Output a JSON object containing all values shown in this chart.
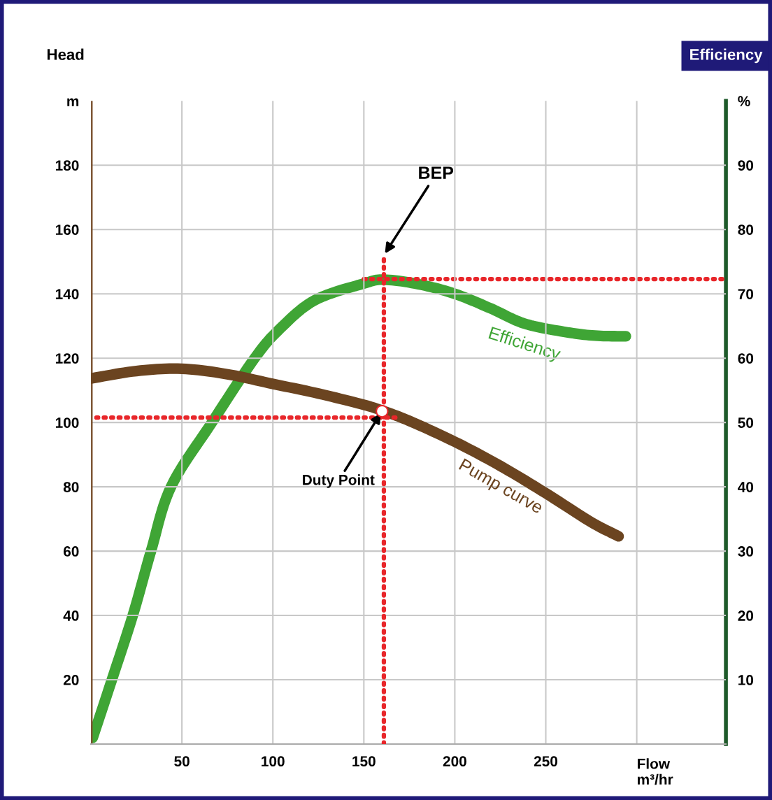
{
  "chart_data": {
    "type": "line",
    "ylabel": "Head",
    "y2label": "Efficiency",
    "xlabel": "Flow\nm³/hr",
    "xlim": [
      0,
      349
    ],
    "xticks": [
      50,
      100,
      150,
      200,
      250,
      {
        "value": 300,
        "label": null
      }
    ],
    "ylim": [
      0,
      200
    ],
    "yticks": [
      20,
      40,
      60,
      80,
      100,
      120,
      140,
      160,
      180,
      {
        "value": 200,
        "label": "m"
      }
    ],
    "y2lim": [
      0,
      100
    ],
    "y2ticks": [
      10,
      20,
      30,
      40,
      50,
      60,
      70,
      80,
      90,
      {
        "value": 100,
        "label": "%"
      }
    ],
    "grid": true,
    "legend": false,
    "series": [
      {
        "name": "Pump curve",
        "color": "#6b4420",
        "x": [
          0,
          25,
          50,
          75,
          100,
          125,
          150,
          161,
          175,
          200,
          225,
          250,
          275,
          290
        ],
        "values": [
          113.7,
          116,
          116.7,
          115,
          112,
          109,
          105.5,
          103.5,
          100.5,
          94,
          86.5,
          78,
          69,
          64.6
        ]
      },
      {
        "name": "Efficiency",
        "color": "#3fa535",
        "axis": "y2",
        "x": [
          1,
          11.5,
          23,
          33,
          44,
          66.5,
          90,
          104,
          123,
          150,
          161,
          180,
          200,
          220,
          238,
          260,
          277,
          294
        ],
        "values": [
          1,
          10,
          20,
          30,
          40,
          50,
          60,
          64.6,
          69,
          71.6,
          72.2,
          71.5,
          70,
          67.7,
          65.4,
          64.1,
          63.5,
          63.4
        ]
      },
      {
        "color": "#e8262a",
        "type": "line",
        "line_style": "dotted",
        "x": [
          161,
          161
        ],
        "values": [
          0,
          152
        ]
      },
      {
        "color": "#e8262a",
        "type": "line",
        "line_style": "dotted",
        "axis": "y2",
        "x": [
          150,
          349
        ],
        "values": [
          72.3,
          72.3
        ]
      },
      {
        "color": "#e8262a",
        "type": "line",
        "line_style": "dotted",
        "x": [
          3,
          170
        ],
        "values": [
          101.5,
          101.5
        ]
      },
      {
        "color": "#ffffff",
        "type": "scatter",
        "marker": "circle",
        "x": [
          160
        ],
        "values": [
          103.5
        ]
      }
    ],
    "ref_lines": [
      {
        "axis": "x",
        "value": 0,
        "color": "#7a5230"
      }
    ],
    "annotations": [
      {
        "text": "BEP",
        "x": 161,
        "y": 152
      },
      {
        "text": "Duty Point",
        "x": 160,
        "y": 103.5
      }
    ]
  }
}
